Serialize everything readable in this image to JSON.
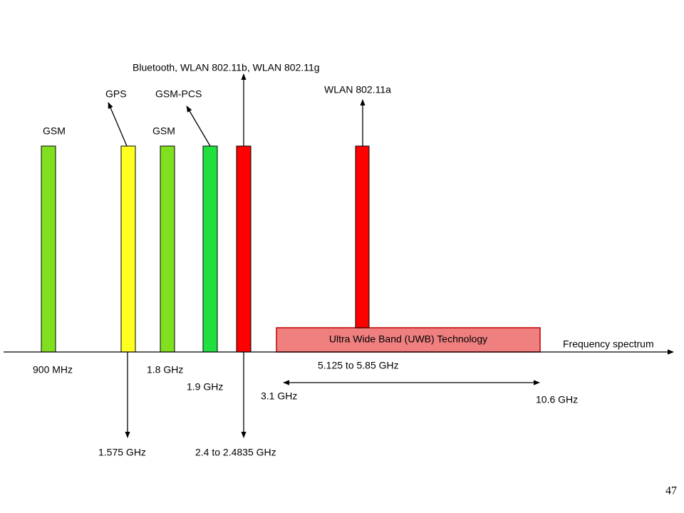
{
  "axis_label": "Frequency spectrum",
  "bands": [
    {
      "name": "GSM",
      "frequency": "900 MHz"
    },
    {
      "name": "GPS",
      "frequency": "1.575 GHz"
    },
    {
      "name": "GSM",
      "frequency": "1.8 GHz"
    },
    {
      "name": "GSM-PCS",
      "frequency": "1.9 GHz"
    },
    {
      "name": "Bluetooth, WLAN 802.11b, WLAN 802.11g",
      "frequency": "2.4 to 2.4835 GHz"
    },
    {
      "name": "WLAN 802.11a",
      "frequency": "5.125 to 5.85 GHz"
    }
  ],
  "uwb": {
    "label": "Ultra Wide Band (UWB) Technology",
    "start": "3.1 GHz",
    "end": "10.6 GHz"
  },
  "page_number": "47"
}
